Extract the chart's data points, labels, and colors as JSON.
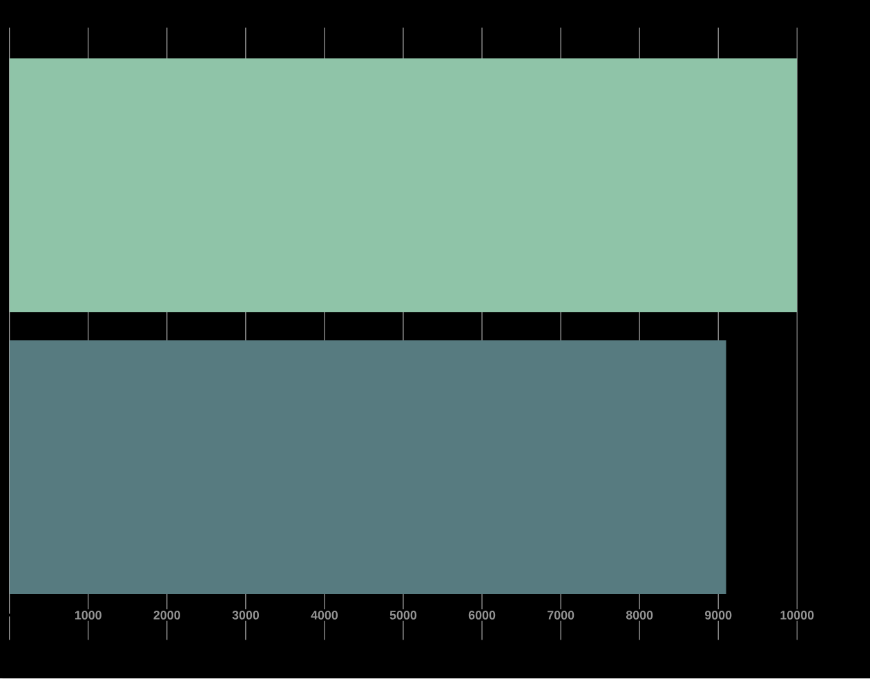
{
  "chart_data": {
    "type": "bar",
    "orientation": "horizontal",
    "categories": [
      null,
      null
    ],
    "values": [
      10000,
      9100
    ],
    "colors": [
      "#8fc4a8",
      "#577b80"
    ],
    "xlim": [
      0,
      10000
    ],
    "xticks": [
      {
        "value": 0,
        "label": null
      },
      1000,
      2000,
      3000,
      4000,
      5000,
      6000,
      7000,
      8000,
      9000,
      10000
    ],
    "grid": "x"
  }
}
